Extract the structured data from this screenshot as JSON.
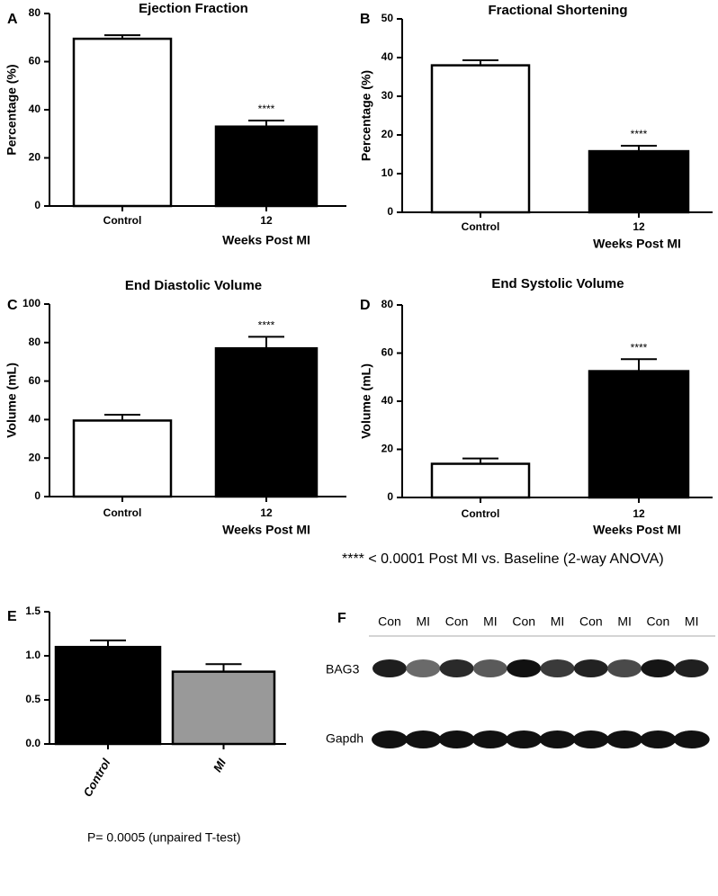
{
  "chart_data": [
    {
      "type": "bar",
      "panel": "A",
      "title": "Ejection Fraction",
      "y_label": "Percentage (%)",
      "x_label": "Weeks Post MI",
      "categories": [
        "Control",
        "12"
      ],
      "values": [
        69.5,
        33
      ],
      "errors": [
        1.5,
        2.5
      ],
      "colors": [
        "#ffffff",
        "#000000"
      ],
      "annotation": "****",
      "ylim": [
        0,
        80
      ],
      "yticks": [
        0,
        20,
        40,
        60,
        80
      ]
    },
    {
      "type": "bar",
      "panel": "B",
      "title": "Fractional Shortening",
      "y_label": "Percentage (%)",
      "x_label": "Weeks Post MI",
      "categories": [
        "Control",
        "12"
      ],
      "values": [
        38,
        15.8
      ],
      "errors": [
        1.3,
        1.4
      ],
      "colors": [
        "#ffffff",
        "#000000"
      ],
      "annotation": "****",
      "ylim": [
        0,
        50
      ],
      "yticks": [
        0,
        10,
        20,
        30,
        40,
        50
      ]
    },
    {
      "type": "bar",
      "panel": "C",
      "title": "End Diastolic Volume",
      "y_label": "Volume (mL)",
      "x_label": "Weeks Post MI",
      "categories": [
        "Control",
        "12"
      ],
      "values": [
        39.5,
        77
      ],
      "errors": [
        3,
        6
      ],
      "colors": [
        "#ffffff",
        "#000000"
      ],
      "annotation": "****",
      "ylim": [
        0,
        100
      ],
      "yticks": [
        0,
        20,
        40,
        60,
        80,
        100
      ]
    },
    {
      "type": "bar",
      "panel": "D",
      "title": "End Systolic Volume",
      "y_label": "Volume (mL)",
      "x_label": "Weeks Post MI",
      "categories": [
        "Control",
        "12"
      ],
      "values": [
        14,
        52.5
      ],
      "errors": [
        2.2,
        5
      ],
      "colors": [
        "#ffffff",
        "#000000"
      ],
      "annotation": "****",
      "ylim": [
        0,
        80
      ],
      "yticks": [
        0,
        20,
        40,
        60,
        80
      ]
    },
    {
      "type": "bar",
      "panel": "E",
      "categories": [
        "Control",
        "MI"
      ],
      "values": [
        1.1,
        0.82
      ],
      "errors": [
        0.075,
        0.085
      ],
      "colors": [
        "#000000",
        "#999999"
      ],
      "ylim": [
        0,
        1.5
      ],
      "yticks": [
        {
          "value": 0,
          "label": "0.0"
        },
        0.5,
        {
          "value": 1,
          "label": "1.0"
        },
        1.5
      ]
    }
  ],
  "footnotes": {
    "anova": "**** < 0.0001 Post MI vs. Baseline (2-way ANOVA)",
    "ttest": "P= 0.0005 (unpaired T-test)"
  },
  "blot": {
    "panel": "F",
    "lanes": [
      "Con",
      "MI",
      "Con",
      "MI",
      "Con",
      "MI",
      "Con",
      "MI",
      "Con",
      "MI"
    ],
    "rows": [
      "BAG3",
      "Gapdh"
    ]
  }
}
